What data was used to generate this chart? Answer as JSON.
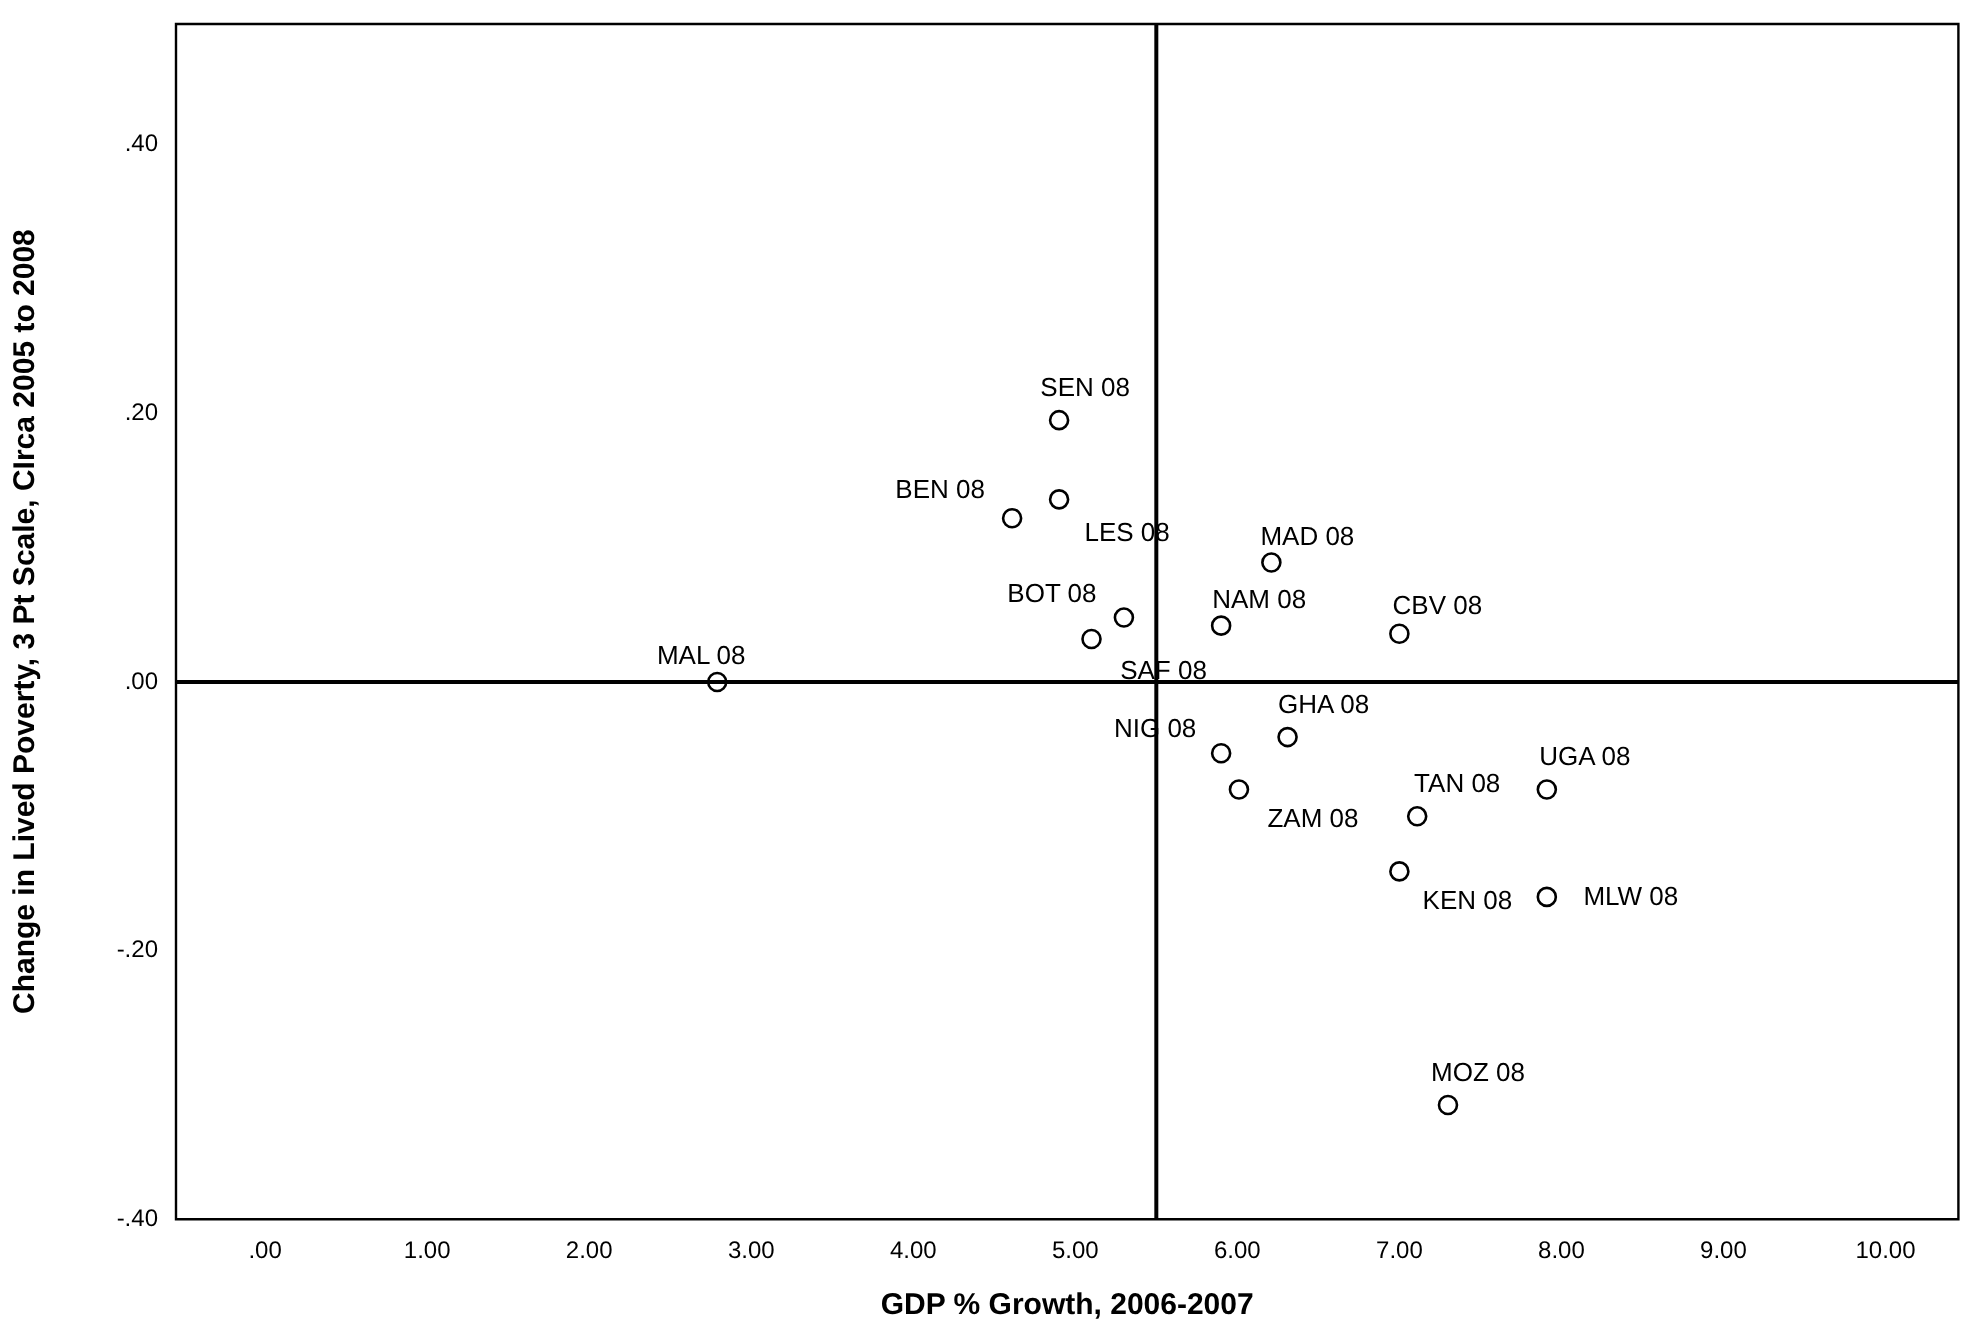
{
  "chart_data": {
    "type": "scatter",
    "xlabel": "GDP % Growth, 2006-2007",
    "ylabel": "Change in Lived Poverty, 3 Pt Scale, CIrca 2005 to 2008",
    "x": [
      2.79,
      4.9,
      4.61,
      4.9,
      5.3,
      5.1,
      5.9,
      6.21,
      7.0,
      5.9,
      6.31,
      6.01,
      7.11,
      7.91,
      7.0,
      7.91,
      7.3
    ],
    "series": [
      {
        "color": "#000000",
        "values": [
          0.0,
          0.195,
          0.122,
          0.136,
          0.048,
          0.032,
          0.042,
          0.089,
          0.036,
          -0.053,
          -0.041,
          -0.08,
          -0.1,
          -0.08,
          -0.141,
          -0.16,
          -0.315
        ]
      }
    ],
    "annotations": [
      {
        "text": "MAL 08",
        "x": 2.79,
        "y": 0.0
      },
      {
        "text": "SEN 08",
        "x": 4.9,
        "y": 0.195
      },
      {
        "text": "BEN 08",
        "x": 4.61,
        "y": 0.122
      },
      {
        "text": "LES 08",
        "x": 4.9,
        "y": 0.136
      },
      {
        "text": "BOT 08",
        "x": 5.3,
        "y": 0.048
      },
      {
        "text": "SAF 08",
        "x": 5.1,
        "y": 0.032
      },
      {
        "text": "NAM 08",
        "x": 5.9,
        "y": 0.042
      },
      {
        "text": "MAD 08",
        "x": 6.21,
        "y": 0.089
      },
      {
        "text": "CBV 08",
        "x": 7.0,
        "y": 0.036
      },
      {
        "text": "NIG 08",
        "x": 5.9,
        "y": -0.053
      },
      {
        "text": "GHA 08",
        "x": 6.31,
        "y": -0.041
      },
      {
        "text": "ZAM 08",
        "x": 6.01,
        "y": -0.08
      },
      {
        "text": "TAN 08",
        "x": 7.11,
        "y": -0.1
      },
      {
        "text": "UGA 08",
        "x": 7.91,
        "y": -0.08
      },
      {
        "text": "KEN 08",
        "x": 7.0,
        "y": -0.141
      },
      {
        "text": "MLW 08",
        "x": 7.91,
        "y": -0.16
      },
      {
        "text": "MOZ 08",
        "x": 7.3,
        "y": -0.315
      }
    ],
    "xlim": [
      -0.55,
      10.45
    ],
    "ylim": [
      -0.4,
      0.49
    ],
    "xticks": [
      {
        "value": 0,
        "label": ".00"
      },
      {
        "value": 1,
        "label": "1.00"
      },
      {
        "value": 2,
        "label": "2.00"
      },
      {
        "value": 3,
        "label": "3.00"
      },
      {
        "value": 4,
        "label": "4.00"
      },
      {
        "value": 5,
        "label": "5.00"
      },
      {
        "value": 6,
        "label": "6.00"
      },
      {
        "value": 7,
        "label": "7.00"
      },
      {
        "value": 8,
        "label": "8.00"
      },
      {
        "value": 9,
        "label": "9.00"
      },
      {
        "value": 10,
        "label": "10.00"
      }
    ],
    "yticks": [
      {
        "value": -0.4,
        "label": "-.40"
      },
      {
        "value": -0.2,
        "label": "-.20"
      },
      {
        "value": 0,
        "label": ".00"
      },
      {
        "value": 0.2,
        "label": ".20"
      },
      {
        "value": 0.4,
        "label": ".40"
      }
    ],
    "ref_lines": [
      {
        "axis": "x",
        "value": 5.5,
        "color": "#000000"
      },
      {
        "axis": "y",
        "value": 0,
        "color": "#000000"
      }
    ],
    "grid": false,
    "legend": false,
    "marker": "circle"
  }
}
